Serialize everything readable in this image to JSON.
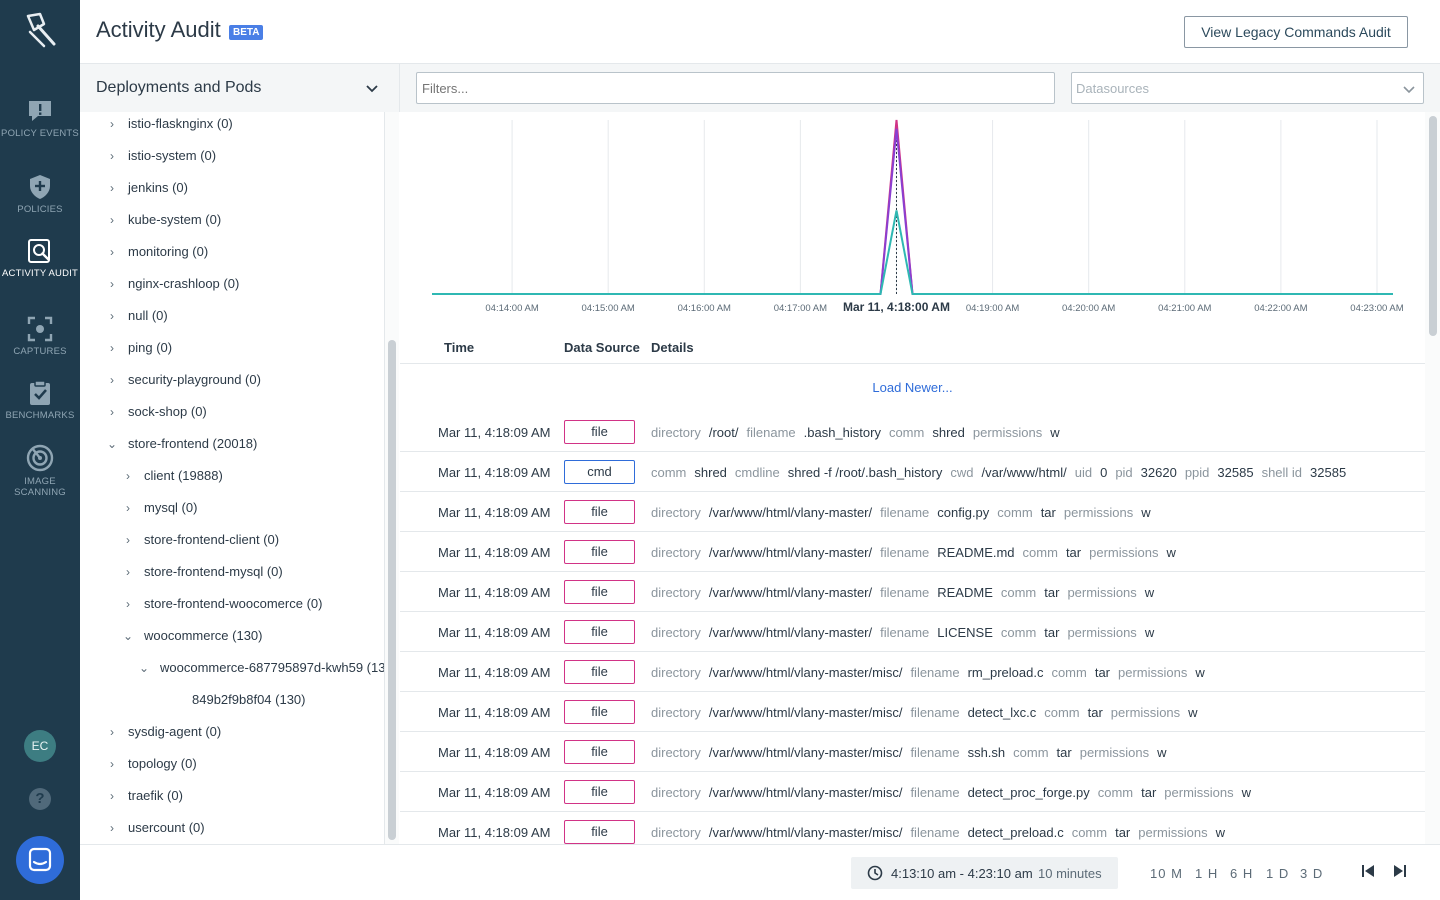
{
  "nav": {
    "items": [
      {
        "label": "POLICY EVENTS",
        "icon": "chat-exclamation-icon"
      },
      {
        "label": "POLICIES",
        "icon": "shield-plus-icon"
      },
      {
        "label": "ACTIVITY AUDIT",
        "icon": "magnifier-doc-icon"
      },
      {
        "label": "CAPTURES",
        "icon": "capture-icon"
      },
      {
        "label": "BENCHMARKS",
        "icon": "clipboard-check-icon"
      },
      {
        "label": "IMAGE SCANNING",
        "icon": "radar-icon"
      }
    ],
    "avatar": "EC",
    "help": "?"
  },
  "header": {
    "title": "Activity Audit",
    "badge": "BETA",
    "legacy_button": "View Legacy Commands Audit"
  },
  "filterbar": {
    "scope_label": "Deployments and Pods",
    "filters_placeholder": "Filters...",
    "datasources_placeholder": "Datasources"
  },
  "tree": [
    {
      "label": "istio-flasknginx (0)",
      "level": 0,
      "state": "collapsed"
    },
    {
      "label": "istio-system (0)",
      "level": 0,
      "state": "collapsed"
    },
    {
      "label": "jenkins (0)",
      "level": 0,
      "state": "collapsed"
    },
    {
      "label": "kube-system (0)",
      "level": 0,
      "state": "collapsed"
    },
    {
      "label": "monitoring (0)",
      "level": 0,
      "state": "collapsed"
    },
    {
      "label": "nginx-crashloop (0)",
      "level": 0,
      "state": "collapsed"
    },
    {
      "label": "null (0)",
      "level": 0,
      "state": "collapsed"
    },
    {
      "label": "ping (0)",
      "level": 0,
      "state": "collapsed"
    },
    {
      "label": "security-playground (0)",
      "level": 0,
      "state": "collapsed"
    },
    {
      "label": "sock-shop (0)",
      "level": 0,
      "state": "collapsed"
    },
    {
      "label": "store-frontend (20018)",
      "level": 0,
      "state": "expanded"
    },
    {
      "label": "client (19888)",
      "level": 1,
      "state": "collapsed"
    },
    {
      "label": "mysql (0)",
      "level": 1,
      "state": "collapsed"
    },
    {
      "label": "store-frontend-client (0)",
      "level": 1,
      "state": "collapsed"
    },
    {
      "label": "store-frontend-mysql (0)",
      "level": 1,
      "state": "collapsed"
    },
    {
      "label": "store-frontend-woocomerce (0)",
      "level": 1,
      "state": "collapsed"
    },
    {
      "label": "woocommerce (130)",
      "level": 1,
      "state": "expanded"
    },
    {
      "label": "woocommerce-687795897d-kwh59 (13",
      "level": 2,
      "state": "expanded"
    },
    {
      "label": "849b2f9b8f04 (130)",
      "level": 3,
      "state": "leaf"
    },
    {
      "label": "sysdig-agent (0)",
      "level": 0,
      "state": "collapsed"
    },
    {
      "label": "topology (0)",
      "level": 0,
      "state": "collapsed"
    },
    {
      "label": "traefik (0)",
      "level": 0,
      "state": "collapsed"
    },
    {
      "label": "usercount (0)",
      "level": 0,
      "state": "collapsed"
    }
  ],
  "chart_data": {
    "type": "line",
    "x_ticks": [
      "04:14:00 AM",
      "04:15:00 AM",
      "04:16:00 AM",
      "04:17:00 AM",
      "Mar 11, 4:18:00 AM",
      "04:19:00 AM",
      "04:20:00 AM",
      "04:21:00 AM",
      "04:22:00 AM",
      "04:23:00 AM"
    ],
    "highlight_tick": "Mar 11, 4:18:00 AM",
    "xlim": [
      "04:13:10",
      "04:23:10"
    ],
    "x": [
      "04:13:10",
      "04:17:50",
      "04:18:00",
      "04:18:10",
      "04:23:10"
    ],
    "series": [
      {
        "color": "#d13386",
        "values": [
          0,
          0,
          100,
          0,
          0
        ]
      },
      {
        "color": "#8a3fd1",
        "values": [
          0,
          0,
          95,
          0,
          0
        ]
      },
      {
        "color": "#2fb8b3",
        "values": [
          0,
          0,
          48,
          0,
          0
        ]
      }
    ],
    "ylim": [
      0,
      100
    ],
    "grid": "vertical",
    "legend": "none"
  },
  "table": {
    "columns": [
      "Time",
      "Data Source",
      "Details"
    ],
    "load_newer": "Load Newer...",
    "rows": [
      {
        "time": "Mar 11, 4:18:09 AM",
        "source": "file",
        "details": [
          [
            "directory",
            "/root/"
          ],
          [
            "filename",
            ".bash_history"
          ],
          [
            "comm",
            "shred"
          ],
          [
            "permissions",
            "w"
          ]
        ]
      },
      {
        "time": "Mar 11, 4:18:09 AM",
        "source": "cmd",
        "details": [
          [
            "comm",
            "shred"
          ],
          [
            "cmdline",
            "shred -f /root/.bash_history"
          ],
          [
            "cwd",
            "/var/www/html/"
          ],
          [
            "uid",
            "0"
          ],
          [
            "pid",
            "32620"
          ],
          [
            "ppid",
            "32585"
          ],
          [
            "shell id",
            "32585"
          ]
        ]
      },
      {
        "time": "Mar 11, 4:18:09 AM",
        "source": "file",
        "details": [
          [
            "directory",
            "/var/www/html/vlany-master/"
          ],
          [
            "filename",
            "config.py"
          ],
          [
            "comm",
            "tar"
          ],
          [
            "permissions",
            "w"
          ]
        ]
      },
      {
        "time": "Mar 11, 4:18:09 AM",
        "source": "file",
        "details": [
          [
            "directory",
            "/var/www/html/vlany-master/"
          ],
          [
            "filename",
            "README.md"
          ],
          [
            "comm",
            "tar"
          ],
          [
            "permissions",
            "w"
          ]
        ]
      },
      {
        "time": "Mar 11, 4:18:09 AM",
        "source": "file",
        "details": [
          [
            "directory",
            "/var/www/html/vlany-master/"
          ],
          [
            "filename",
            "README"
          ],
          [
            "comm",
            "tar"
          ],
          [
            "permissions",
            "w"
          ]
        ]
      },
      {
        "time": "Mar 11, 4:18:09 AM",
        "source": "file",
        "details": [
          [
            "directory",
            "/var/www/html/vlany-master/"
          ],
          [
            "filename",
            "LICENSE"
          ],
          [
            "comm",
            "tar"
          ],
          [
            "permissions",
            "w"
          ]
        ]
      },
      {
        "time": "Mar 11, 4:18:09 AM",
        "source": "file",
        "details": [
          [
            "directory",
            "/var/www/html/vlany-master/misc/"
          ],
          [
            "filename",
            "rm_preload.c"
          ],
          [
            "comm",
            "tar"
          ],
          [
            "permissions",
            "w"
          ]
        ]
      },
      {
        "time": "Mar 11, 4:18:09 AM",
        "source": "file",
        "details": [
          [
            "directory",
            "/var/www/html/vlany-master/misc/"
          ],
          [
            "filename",
            "detect_lxc.c"
          ],
          [
            "comm",
            "tar"
          ],
          [
            "permissions",
            "w"
          ]
        ]
      },
      {
        "time": "Mar 11, 4:18:09 AM",
        "source": "file",
        "details": [
          [
            "directory",
            "/var/www/html/vlany-master/misc/"
          ],
          [
            "filename",
            "ssh.sh"
          ],
          [
            "comm",
            "tar"
          ],
          [
            "permissions",
            "w"
          ]
        ]
      },
      {
        "time": "Mar 11, 4:18:09 AM",
        "source": "file",
        "details": [
          [
            "directory",
            "/var/www/html/vlany-master/misc/"
          ],
          [
            "filename",
            "detect_proc_forge.py"
          ],
          [
            "comm",
            "tar"
          ],
          [
            "permissions",
            "w"
          ]
        ]
      },
      {
        "time": "Mar 11, 4:18:09 AM",
        "source": "file",
        "details": [
          [
            "directory",
            "/var/www/html/vlany-master/misc/"
          ],
          [
            "filename",
            "detect_preload.c"
          ],
          [
            "comm",
            "tar"
          ],
          [
            "permissions",
            "w"
          ]
        ]
      }
    ]
  },
  "footer": {
    "range": "4:13:10 am - 4:23:10 am",
    "duration": "10 minutes",
    "presets": [
      "10 M",
      "1 H",
      "6 H",
      "1 D",
      "3 D"
    ]
  },
  "colors": {
    "nav_bg": "#1f3b4d",
    "accent": "#2f6cd9",
    "file_border": "#d13386",
    "cmd_border": "#2f6cd9"
  }
}
